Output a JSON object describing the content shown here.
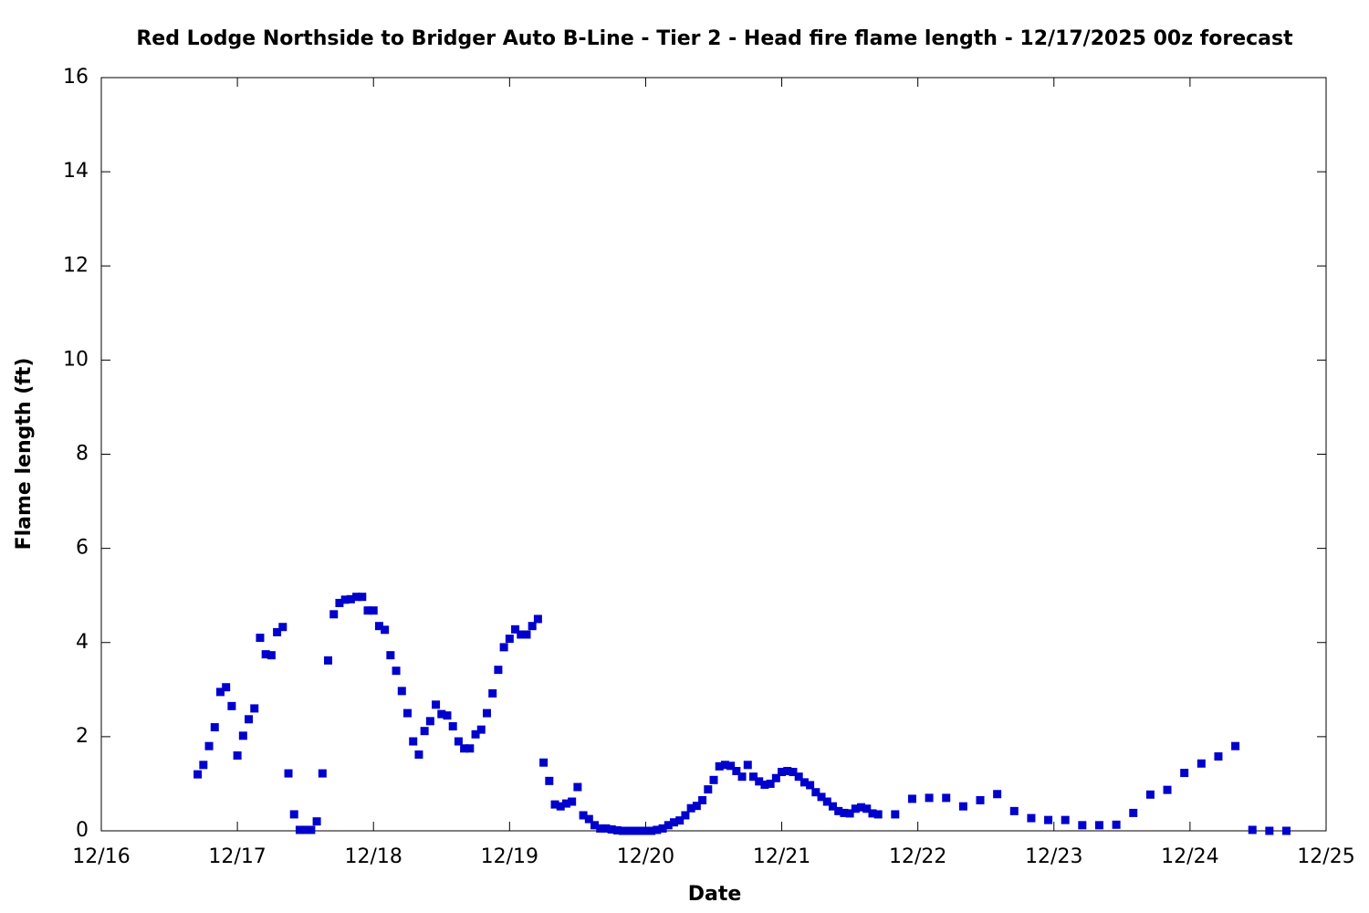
{
  "chart_data": {
    "type": "scatter",
    "title": "Red Lodge Northside to Bridger Auto B-Line - Tier 2 - Head fire flame length - 12/17/2025 00z forecast",
    "x_label": "Date",
    "y_label": "Flame length (ft)",
    "color": "#0000cc",
    "xlim": [
      0,
      216
    ],
    "ylim": [
      0,
      16
    ],
    "xticks": [
      {
        "value": 0,
        "label": "12/16"
      },
      {
        "value": 24,
        "label": "12/17"
      },
      {
        "value": 48,
        "label": "12/18"
      },
      {
        "value": 72,
        "label": "12/19"
      },
      {
        "value": 96,
        "label": "12/20"
      },
      {
        "value": 120,
        "label": "12/21"
      },
      {
        "value": 144,
        "label": "12/22"
      },
      {
        "value": 168,
        "label": "12/23"
      },
      {
        "value": 192,
        "label": "12/24"
      },
      {
        "value": 216,
        "label": "12/25"
      }
    ],
    "yticks": [
      0,
      2,
      4,
      6,
      8,
      10,
      12,
      14,
      16
    ],
    "x": [
      17,
      18,
      19,
      20,
      21,
      22,
      23,
      24,
      25,
      26,
      27,
      28,
      29,
      30,
      31,
      32,
      33,
      34,
      35,
      36,
      37,
      38,
      39,
      40,
      41,
      42,
      43,
      44,
      45,
      46,
      47,
      48,
      49,
      50,
      51,
      52,
      53,
      54,
      55,
      56,
      57,
      58,
      59,
      60,
      61,
      62,
      63,
      64,
      65,
      66,
      67,
      68,
      69,
      70,
      71,
      72,
      73,
      74,
      75,
      76,
      77,
      78,
      79,
      80,
      81,
      82,
      83,
      84,
      85,
      86,
      87,
      88,
      89,
      90,
      91,
      92,
      93,
      94,
      95,
      96,
      97,
      98,
      99,
      100,
      101,
      102,
      103,
      104,
      105,
      106,
      107,
      108,
      109,
      110,
      111,
      112,
      113,
      114,
      115,
      116,
      117,
      118,
      119,
      120,
      121,
      122,
      123,
      124,
      125,
      126,
      127,
      128,
      129,
      130,
      131,
      132,
      133,
      134,
      135,
      136,
      137,
      140,
      143,
      146,
      149,
      152,
      155,
      158,
      161,
      164,
      167,
      170,
      173,
      176,
      179,
      182,
      185,
      188,
      191,
      194,
      197,
      200,
      203,
      206,
      209
    ],
    "values": [
      1.2,
      1.4,
      1.8,
      2.2,
      2.95,
      3.05,
      2.65,
      1.6,
      2.02,
      2.37,
      2.6,
      4.1,
      3.75,
      3.73,
      4.22,
      4.33,
      1.22,
      0.35,
      0.02,
      0.02,
      0.02,
      0.2,
      1.22,
      3.62,
      4.6,
      4.84,
      4.91,
      4.92,
      4.97,
      4.97,
      4.68,
      4.68,
      4.35,
      4.27,
      3.73,
      3.4,
      2.97,
      2.5,
      1.9,
      1.62,
      2.12,
      2.33,
      2.68,
      2.48,
      2.45,
      2.22,
      1.9,
      1.75,
      1.75,
      2.05,
      2.15,
      2.5,
      2.92,
      3.42,
      3.9,
      4.08,
      4.28,
      4.17,
      4.17,
      4.35,
      4.5,
      1.45,
      1.06,
      0.56,
      0.52,
      0.58,
      0.62,
      0.93,
      0.33,
      0.25,
      0.12,
      0.05,
      0.05,
      0.03,
      0.01,
      0,
      0,
      0,
      0,
      0,
      0,
      0.02,
      0.05,
      0.12,
      0.18,
      0.22,
      0.33,
      0.48,
      0.53,
      0.65,
      0.88,
      1.08,
      1.37,
      1.4,
      1.38,
      1.27,
      1.15,
      1.4,
      1.15,
      1.05,
      0.98,
      1.0,
      1.12,
      1.25,
      1.27,
      1.25,
      1.15,
      1.03,
      0.97,
      0.82,
      0.72,
      0.62,
      0.52,
      0.42,
      0.38,
      0.37,
      0.47,
      0.5,
      0.47,
      0.37,
      0.35,
      0.35,
      0.68,
      0.7,
      0.7,
      0.52,
      0.65,
      0.78,
      0.42,
      0.27,
      0.23,
      0.23,
      0.12,
      0.12,
      0.13,
      0.38,
      0.77,
      0.87,
      1.23,
      1.43,
      1.58,
      1.8,
      0.02,
      0,
      0
    ]
  }
}
